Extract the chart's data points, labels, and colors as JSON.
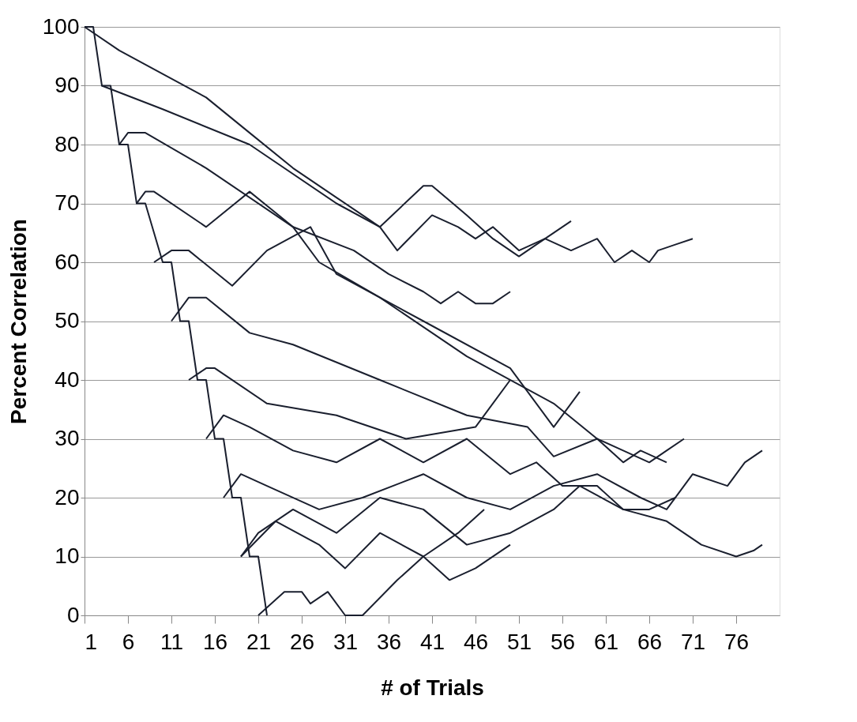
{
  "chart_data": {
    "type": "line",
    "xlabel": "# of Trials",
    "ylabel": "Percent Correlation",
    "xlim": [
      1,
      81
    ],
    "ylim": [
      0,
      100
    ],
    "xticks": [
      1,
      6,
      11,
      16,
      21,
      26,
      31,
      36,
      41,
      46,
      51,
      56,
      61,
      66,
      71,
      76
    ],
    "yticks": [
      0,
      10,
      20,
      30,
      40,
      50,
      60,
      70,
      80,
      90,
      100
    ],
    "grid": "y",
    "legend": false,
    "marker": "none",
    "line_style": "solid",
    "series": [
      {
        "color": "#1a1f2e",
        "x": [
          1,
          2,
          3,
          4,
          5,
          6,
          7,
          8,
          10,
          11,
          12,
          13,
          14,
          15,
          16,
          17,
          18,
          19,
          20,
          21,
          22
        ],
        "values": [
          100,
          100,
          90,
          90,
          80,
          80,
          70,
          70,
          60,
          60,
          50,
          50,
          40,
          40,
          30,
          30,
          20,
          20,
          10,
          10,
          0
        ]
      },
      {
        "color": "#1a1f2e",
        "x": [
          1,
          5,
          10,
          15,
          20,
          25,
          30,
          33,
          35,
          40,
          41,
          45,
          48,
          51,
          53,
          57
        ],
        "values": [
          100,
          96,
          92,
          88,
          82,
          76,
          71,
          68,
          66,
          73,
          73,
          68,
          64,
          61,
          63,
          67
        ]
      },
      {
        "color": "#1a1f2e",
        "x": [
          3,
          10,
          20,
          30,
          35,
          37,
          41,
          44,
          46,
          48,
          51,
          54,
          57,
          60,
          62,
          64,
          66,
          67,
          69,
          71
        ],
        "values": [
          90,
          86,
          80,
          70,
          66,
          62,
          68,
          66,
          64,
          66,
          62,
          64,
          62,
          64,
          60,
          62,
          60,
          62,
          63,
          64
        ]
      },
      {
        "color": "#1a1f2e",
        "x": [
          5,
          6,
          8,
          15,
          25,
          32,
          36,
          40,
          42,
          44,
          46,
          48,
          50
        ],
        "values": [
          80,
          82,
          82,
          76,
          66,
          62,
          58,
          55,
          53,
          55,
          53,
          53,
          55
        ]
      },
      {
        "color": "#1a1f2e",
        "x": [
          7,
          8,
          9,
          15,
          20,
          25,
          28,
          35,
          45,
          55,
          60,
          63,
          66,
          68,
          70
        ],
        "values": [
          70,
          72,
          72,
          66,
          72,
          66,
          60,
          54,
          44,
          36,
          30,
          28,
          26,
          28,
          30
        ]
      },
      {
        "color": "#1a1f2e",
        "x": [
          9,
          11,
          13,
          18,
          22,
          27,
          30,
          40,
          50,
          55,
          58
        ],
        "values": [
          60,
          62,
          62,
          56,
          62,
          66,
          58,
          50,
          42,
          32,
          38
        ]
      },
      {
        "color": "#1a1f2e",
        "x": [
          11,
          13,
          15,
          20,
          25,
          35,
          45,
          52,
          55,
          60,
          63,
          65,
          68
        ],
        "values": [
          50,
          54,
          54,
          48,
          46,
          40,
          34,
          32,
          27,
          30,
          26,
          28,
          26
        ]
      },
      {
        "color": "#1a1f2e",
        "x": [
          13,
          15,
          16,
          22,
          30,
          38,
          46,
          50
        ],
        "values": [
          40,
          42,
          42,
          36,
          34,
          30,
          32,
          40
        ]
      },
      {
        "color": "#1a1f2e",
        "x": [
          15,
          17,
          20,
          25,
          30,
          35,
          40,
          45,
          50,
          53,
          56,
          60,
          63,
          66,
          69
        ],
        "values": [
          30,
          34,
          32,
          28,
          26,
          30,
          26,
          30,
          24,
          26,
          22,
          22,
          18,
          18,
          20
        ]
      },
      {
        "color": "#1a1f2e",
        "x": [
          17,
          19,
          22,
          28,
          33,
          40,
          45,
          50,
          55,
          60,
          65,
          68,
          71,
          75,
          77,
          79
        ],
        "values": [
          20,
          24,
          22,
          18,
          20,
          24,
          20,
          18,
          22,
          24,
          20,
          18,
          24,
          22,
          26,
          28
        ]
      },
      {
        "color": "#1a1f2e",
        "x": [
          19,
          21,
          25,
          30,
          35,
          40,
          45,
          50,
          55,
          58,
          63,
          68,
          72,
          76,
          78,
          79
        ],
        "values": [
          10,
          14,
          18,
          14,
          20,
          18,
          12,
          14,
          18,
          22,
          18,
          16,
          12,
          10,
          11,
          12
        ]
      },
      {
        "color": "#1a1f2e",
        "x": [
          19,
          23,
          28,
          31,
          35,
          40,
          43,
          46,
          50
        ],
        "values": [
          10,
          16,
          12,
          8,
          14,
          10,
          6,
          8,
          12
        ]
      },
      {
        "color": "#1a1f2e",
        "x": [
          21,
          24,
          26,
          27,
          29,
          31,
          33,
          37,
          40,
          44,
          47
        ],
        "values": [
          0,
          4,
          4,
          2,
          4,
          0,
          0,
          6,
          10,
          14,
          18
        ]
      }
    ]
  }
}
